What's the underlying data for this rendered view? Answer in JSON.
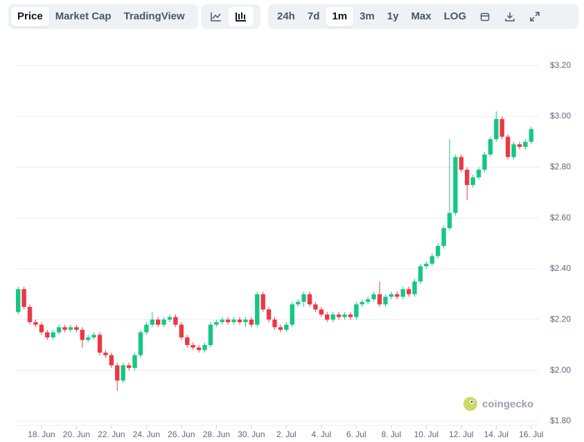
{
  "toolbar": {
    "tabs": [
      "Price",
      "Market Cap",
      "TradingView"
    ],
    "ranges": [
      "24h",
      "7d",
      "1m",
      "3m",
      "1y",
      "Max",
      "LOG"
    ]
  },
  "watermark": "coingecko",
  "chart_data": {
    "type": "candlestick",
    "categories": [
      null,
      null,
      null,
      null,
      "18. Jun",
      null,
      null,
      null,
      null,
      null,
      "20. Jun",
      null,
      null,
      null,
      null,
      null,
      "22. Jun",
      null,
      null,
      null,
      null,
      null,
      "24. Jun",
      null,
      null,
      null,
      null,
      null,
      "26. Jun",
      null,
      null,
      null,
      null,
      null,
      "28. Jun",
      null,
      null,
      null,
      null,
      null,
      "30. Jun",
      null,
      null,
      null,
      null,
      null,
      "2. Jul",
      null,
      null,
      null,
      null,
      null,
      "4. Jul",
      null,
      null,
      null,
      null,
      null,
      "6. Jul",
      null,
      null,
      null,
      null,
      null,
      "8. Jul",
      null,
      null,
      null,
      null,
      null,
      "10. Jul",
      null,
      null,
      null,
      null,
      null,
      "12. Jul",
      null,
      null,
      null,
      null,
      null,
      "14. Jul",
      null,
      null,
      null,
      null,
      null,
      "16. Jul"
    ],
    "open": [
      2.23,
      2.32,
      2.25,
      2.19,
      2.18,
      2.15,
      2.13,
      2.15,
      2.17,
      2.16,
      2.17,
      2.16,
      2.12,
      2.13,
      2.14,
      2.07,
      2.06,
      2.02,
      1.96,
      2.02,
      2.01,
      2.06,
      2.15,
      2.18,
      2.2,
      2.18,
      2.2,
      2.21,
      2.18,
      2.13,
      2.1,
      2.09,
      2.08,
      2.1,
      2.18,
      2.19,
      2.2,
      2.19,
      2.2,
      2.19,
      2.2,
      2.18,
      2.3,
      2.24,
      2.2,
      2.17,
      2.16,
      2.18,
      2.26,
      2.27,
      2.3,
      2.26,
      2.24,
      2.22,
      2.2,
      2.22,
      2.21,
      2.22,
      2.21,
      2.26,
      2.27,
      2.28,
      2.3,
      2.26,
      2.29,
      2.3,
      2.29,
      2.32,
      2.3,
      2.35,
      2.41,
      2.42,
      2.45,
      2.49,
      2.56,
      2.62,
      2.84,
      2.79,
      2.73,
      2.76,
      2.79,
      2.85,
      2.91,
      2.99,
      2.92,
      2.84,
      2.89,
      2.88,
      2.9
    ],
    "high": [
      2.33,
      2.33,
      2.26,
      2.2,
      2.19,
      2.16,
      2.16,
      2.18,
      2.18,
      2.18,
      2.18,
      2.17,
      2.14,
      2.15,
      2.15,
      2.08,
      2.07,
      2.03,
      2.03,
      2.03,
      2.07,
      2.16,
      2.19,
      2.23,
      2.21,
      2.21,
      2.22,
      2.22,
      2.19,
      2.14,
      2.11,
      2.1,
      2.11,
      2.19,
      2.2,
      2.21,
      2.21,
      2.21,
      2.21,
      2.21,
      2.21,
      2.31,
      2.31,
      2.25,
      2.21,
      2.18,
      2.19,
      2.27,
      2.28,
      2.31,
      2.31,
      2.27,
      2.25,
      2.23,
      2.23,
      2.23,
      2.23,
      2.23,
      2.27,
      2.28,
      2.29,
      2.31,
      2.35,
      2.3,
      2.31,
      2.31,
      2.33,
      2.33,
      2.36,
      2.42,
      2.43,
      2.46,
      2.5,
      2.57,
      2.91,
      2.85,
      2.85,
      2.8,
      2.77,
      2.8,
      2.86,
      2.92,
      3.02,
      3.0,
      2.93,
      2.9,
      2.9,
      2.91,
      2.96
    ],
    "low": [
      2.22,
      2.24,
      2.18,
      2.17,
      2.14,
      2.12,
      2.12,
      2.14,
      2.15,
      2.15,
      2.15,
      2.09,
      2.11,
      2.12,
      2.06,
      2.05,
      2.01,
      1.92,
      1.95,
      2.0,
      2.0,
      2.05,
      2.14,
      2.17,
      2.17,
      2.17,
      2.19,
      2.17,
      2.12,
      2.09,
      2.08,
      2.07,
      2.07,
      2.09,
      2.17,
      2.18,
      2.18,
      2.18,
      2.18,
      2.17,
      2.17,
      2.17,
      2.23,
      2.19,
      2.16,
      2.15,
      2.15,
      2.17,
      2.25,
      2.25,
      2.25,
      2.23,
      2.21,
      2.19,
      2.19,
      2.2,
      2.2,
      2.2,
      2.2,
      2.25,
      2.26,
      2.27,
      2.25,
      2.25,
      2.28,
      2.28,
      2.28,
      2.29,
      2.29,
      2.34,
      2.4,
      2.41,
      2.44,
      2.48,
      2.55,
      2.61,
      2.78,
      2.67,
      2.72,
      2.75,
      2.78,
      2.84,
      2.9,
      2.91,
      2.83,
      2.83,
      2.87,
      2.87,
      2.89
    ],
    "close": [
      2.32,
      2.25,
      2.19,
      2.18,
      2.15,
      2.13,
      2.15,
      2.17,
      2.16,
      2.17,
      2.16,
      2.12,
      2.13,
      2.14,
      2.07,
      2.06,
      2.02,
      1.96,
      2.02,
      2.01,
      2.06,
      2.15,
      2.18,
      2.2,
      2.18,
      2.2,
      2.21,
      2.18,
      2.13,
      2.1,
      2.09,
      2.08,
      2.1,
      2.18,
      2.19,
      2.2,
      2.19,
      2.2,
      2.19,
      2.2,
      2.18,
      2.3,
      2.24,
      2.2,
      2.17,
      2.16,
      2.18,
      2.26,
      2.27,
      2.3,
      2.26,
      2.24,
      2.22,
      2.2,
      2.22,
      2.21,
      2.22,
      2.21,
      2.26,
      2.27,
      2.28,
      2.3,
      2.26,
      2.29,
      2.3,
      2.29,
      2.32,
      2.3,
      2.35,
      2.41,
      2.42,
      2.45,
      2.49,
      2.56,
      2.62,
      2.84,
      2.79,
      2.73,
      2.76,
      2.79,
      2.85,
      2.91,
      2.99,
      2.92,
      2.84,
      2.89,
      2.88,
      2.9,
      2.95
    ],
    "up_color": "#16c784",
    "down_color": "#ea3943",
    "ylim": [
      1.8,
      3.3
    ],
    "yticks": [
      {
        "value": 1.8,
        "label": "$1.80"
      },
      {
        "value": 2.0,
        "label": "$2.00"
      },
      {
        "value": 2.2,
        "label": "$2.20"
      },
      {
        "value": 2.4,
        "label": "$2.40"
      },
      {
        "value": 2.6,
        "label": "$2.60"
      },
      {
        "value": 2.8,
        "label": "$2.80"
      },
      {
        "value": 3.0,
        "label": "$3.00"
      },
      {
        "value": 3.2,
        "label": "$3.20"
      }
    ],
    "grid": true
  }
}
